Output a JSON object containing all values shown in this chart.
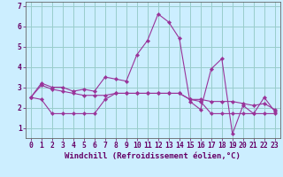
{
  "line1": {
    "x": [
      0,
      1,
      2,
      3,
      4,
      5,
      6,
      7,
      8,
      9,
      10,
      11,
      12,
      13,
      14,
      15,
      16,
      17,
      18,
      19,
      20,
      21,
      22,
      23
    ],
    "y": [
      2.5,
      3.2,
      3.0,
      3.0,
      2.8,
      2.9,
      2.8,
      3.5,
      3.4,
      3.3,
      4.6,
      5.3,
      6.6,
      6.2,
      5.4,
      2.3,
      1.9,
      3.9,
      4.4,
      0.7,
      2.1,
      1.7,
      2.5,
      1.8
    ]
  },
  "line2": {
    "x": [
      0,
      1,
      2,
      3,
      4,
      5,
      6,
      7,
      8,
      9,
      10,
      11,
      12,
      13,
      14,
      15,
      16,
      17,
      18,
      19,
      20,
      21,
      22,
      23
    ],
    "y": [
      2.5,
      3.1,
      2.9,
      2.8,
      2.7,
      2.6,
      2.6,
      2.6,
      2.7,
      2.7,
      2.7,
      2.7,
      2.7,
      2.7,
      2.7,
      2.4,
      2.4,
      2.3,
      2.3,
      2.3,
      2.2,
      2.1,
      2.2,
      1.9
    ]
  },
  "line3": {
    "x": [
      0,
      1,
      2,
      3,
      4,
      5,
      6,
      7,
      8,
      9,
      10,
      11,
      12,
      13,
      14,
      15,
      16,
      17,
      18,
      19,
      20,
      21,
      22,
      23
    ],
    "y": [
      2.5,
      2.4,
      1.7,
      1.7,
      1.7,
      1.7,
      1.7,
      2.4,
      2.7,
      2.7,
      2.7,
      2.7,
      2.7,
      2.7,
      2.7,
      2.4,
      2.3,
      1.7,
      1.7,
      1.7,
      1.7,
      1.7,
      1.7,
      1.7
    ]
  },
  "line_color": "#993399",
  "marker": "D",
  "marker_size": 2.2,
  "background_color": "#cceeff",
  "grid_color": "#99cccc",
  "axis_color": "#660066",
  "spine_color": "#666666",
  "xlim": [
    -0.5,
    23.5
  ],
  "ylim": [
    0.5,
    7.2
  ],
  "yticks": [
    1,
    2,
    3,
    4,
    5,
    6,
    7
  ],
  "xticks": [
    0,
    1,
    2,
    3,
    4,
    5,
    6,
    7,
    8,
    9,
    10,
    11,
    12,
    13,
    14,
    15,
    16,
    17,
    18,
    19,
    20,
    21,
    22,
    23
  ],
  "xlabel": "Windchill (Refroidissement éolien,°C)",
  "xlabel_fontsize": 6.5,
  "tick_fontsize": 5.8
}
